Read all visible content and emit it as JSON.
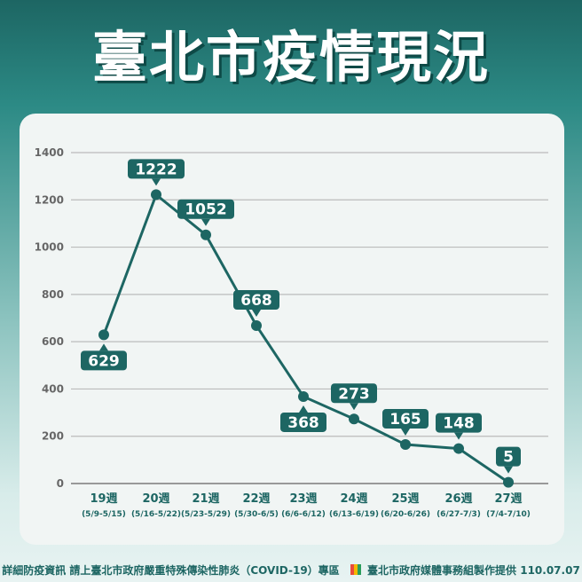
{
  "title": "臺北市疫情現況",
  "chart_data": {
    "type": "line",
    "title": "",
    "xlabel": "",
    "ylabel": "",
    "ylim": [
      0,
      1400
    ],
    "yticks": [
      0,
      200,
      400,
      600,
      800,
      1000,
      1200,
      1400
    ],
    "grid": true,
    "categories": [
      "19週",
      "20週",
      "21週",
      "22週",
      "23週",
      "24週",
      "25週",
      "26週",
      "27週"
    ],
    "subcategories": [
      "(5/9-5/15)",
      "(5/16-5/22)",
      "(5/23-5/29)",
      "(5/30-6/5)",
      "(6/6-6/12)",
      "(6/13-6/19)",
      "(6/20-6/26)",
      "(6/27-7/3)",
      "(7/4-7/10)"
    ],
    "values": [
      629,
      1222,
      1052,
      668,
      368,
      273,
      165,
      148,
      5
    ],
    "color": "#1d6663"
  },
  "footer": {
    "left": "詳細防疫資訊 請上臺北市政府嚴重特殊傳染性肺炎（COVID-19）專區",
    "right": "臺北市政府媒體事務組製作提供 110.07.07"
  }
}
